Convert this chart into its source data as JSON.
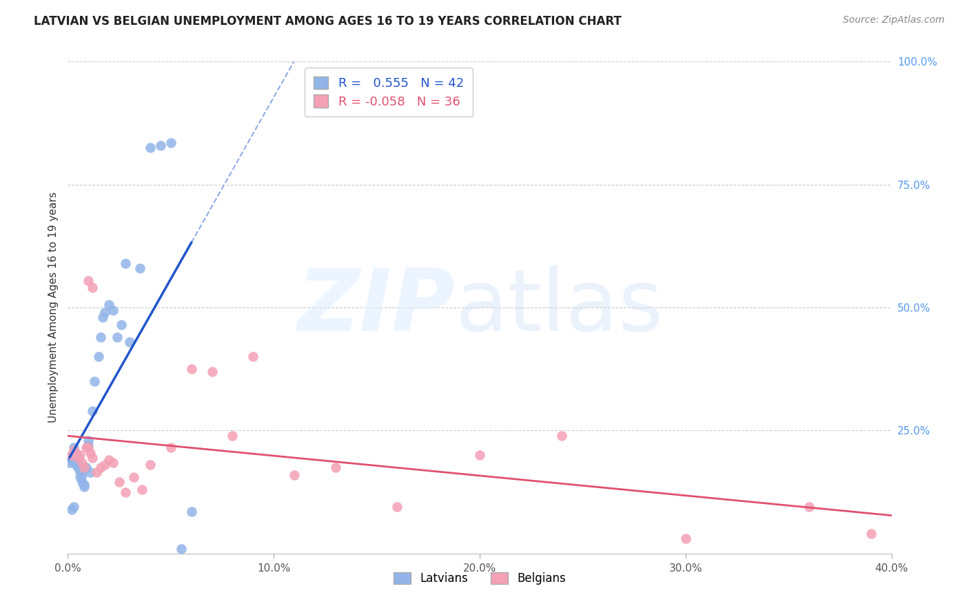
{
  "title": "LATVIAN VS BELGIAN UNEMPLOYMENT AMONG AGES 16 TO 19 YEARS CORRELATION CHART",
  "source": "Source: ZipAtlas.com",
  "ylabel": "Unemployment Among Ages 16 to 19 years",
  "xlim": [
    0.0,
    0.4
  ],
  "ylim": [
    0.0,
    1.0
  ],
  "xticks": [
    0.0,
    0.1,
    0.2,
    0.3,
    0.4
  ],
  "xtick_labels": [
    "0.0%",
    "10.0%",
    "20.0%",
    "30.0%",
    "40.0%"
  ],
  "yticks": [
    0.25,
    0.5,
    0.75,
    1.0
  ],
  "ytick_labels": [
    "25.0%",
    "50.0%",
    "75.0%",
    "100.0%"
  ],
  "latvian_R": 0.555,
  "latvian_N": 42,
  "belgian_R": -0.058,
  "belgian_N": 36,
  "latvian_color": "#92b4e8",
  "belgian_color": "#f4a0b5",
  "latvian_line_color": "#2255cc",
  "belgian_line_color": "#e05070",
  "latvian_x": [
    0.001,
    0.001,
    0.002,
    0.002,
    0.002,
    0.003,
    0.003,
    0.003,
    0.004,
    0.004,
    0.004,
    0.005,
    0.005,
    0.005,
    0.006,
    0.006,
    0.007,
    0.007,
    0.008,
    0.008,
    0.009,
    0.01,
    0.01,
    0.011,
    0.012,
    0.013,
    0.015,
    0.016,
    0.017,
    0.018,
    0.02,
    0.022,
    0.024,
    0.026,
    0.028,
    0.03,
    0.035,
    0.04,
    0.045,
    0.05,
    0.055,
    0.06
  ],
  "latvian_y": [
    0.19,
    0.185,
    0.2,
    0.195,
    0.09,
    0.215,
    0.205,
    0.095,
    0.205,
    0.2,
    0.18,
    0.195,
    0.185,
    0.175,
    0.165,
    0.155,
    0.16,
    0.145,
    0.14,
    0.135,
    0.175,
    0.23,
    0.22,
    0.165,
    0.29,
    0.35,
    0.4,
    0.44,
    0.48,
    0.49,
    0.505,
    0.495,
    0.44,
    0.465,
    0.59,
    0.43,
    0.58,
    0.825,
    0.83,
    0.835,
    0.01,
    0.085
  ],
  "belgian_x": [
    0.002,
    0.003,
    0.004,
    0.005,
    0.006,
    0.007,
    0.008,
    0.009,
    0.01,
    0.011,
    0.012,
    0.014,
    0.016,
    0.018,
    0.02,
    0.022,
    0.025,
    0.028,
    0.032,
    0.036,
    0.04,
    0.05,
    0.06,
    0.07,
    0.08,
    0.09,
    0.11,
    0.13,
    0.16,
    0.2,
    0.24,
    0.3,
    0.36,
    0.39,
    0.01,
    0.012
  ],
  "belgian_y": [
    0.2,
    0.21,
    0.205,
    0.195,
    0.2,
    0.185,
    0.175,
    0.215,
    0.215,
    0.205,
    0.195,
    0.165,
    0.175,
    0.18,
    0.19,
    0.185,
    0.145,
    0.125,
    0.155,
    0.13,
    0.18,
    0.215,
    0.375,
    0.37,
    0.24,
    0.4,
    0.16,
    0.175,
    0.095,
    0.2,
    0.24,
    0.03,
    0.095,
    0.04,
    0.555,
    0.54
  ]
}
